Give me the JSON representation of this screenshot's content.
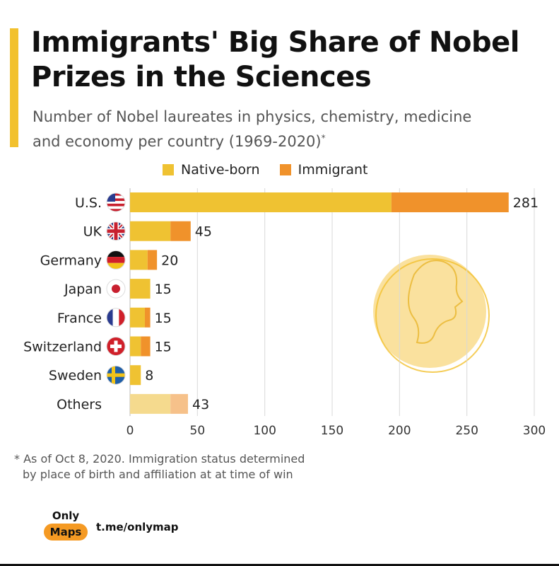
{
  "header": {
    "title": "Immigrants' Big Share of Nobel Prizes in the Sciences",
    "subtitle": "Number of Nobel laureates in physics, chemistry, medicine and economy per country (1969-2020)",
    "subtitle_mark": "*"
  },
  "legend": {
    "native_label": "Native-born",
    "immigrant_label": "Immigrant"
  },
  "colors": {
    "accent": "#f2c12e",
    "native": "#efc232",
    "immigrant": "#f0922b",
    "native_others": "#f5da8e",
    "immigrant_others": "#f6c18a",
    "grid": "#d9d9d9",
    "medal": "#f8d77e"
  },
  "chart_data": {
    "type": "bar",
    "orientation": "horizontal",
    "stacked": true,
    "categories": [
      "U.S.",
      "UK",
      "Germany",
      "Japan",
      "France",
      "Switzerland",
      "Sweden",
      "Others"
    ],
    "flag_icons": [
      "us-flag-icon",
      "uk-flag-icon",
      "germany-flag-icon",
      "japan-flag-icon",
      "france-flag-icon",
      "switzerland-flag-icon",
      "sweden-flag-icon",
      ""
    ],
    "series": [
      {
        "name": "Native-born",
        "values": [
          194,
          30,
          13,
          15,
          11,
          8,
          8,
          30
        ]
      },
      {
        "name": "Immigrant",
        "values": [
          87,
          15,
          7,
          0,
          4,
          7,
          0,
          13
        ]
      }
    ],
    "totals": [
      281,
      45,
      20,
      15,
      15,
      15,
      8,
      43
    ],
    "x_ticks": [
      0,
      50,
      100,
      150,
      200,
      250,
      300
    ],
    "xlim": [
      0,
      300
    ],
    "grid": true,
    "legend_position": "top"
  },
  "footnote": {
    "line1": "* As of Oct 8, 2020. Immigration status determined",
    "line2": "by place of birth and affiliation at at time of win"
  },
  "branding": {
    "top": "Only",
    "pill": "Maps",
    "link": "t.me/onlymap"
  }
}
